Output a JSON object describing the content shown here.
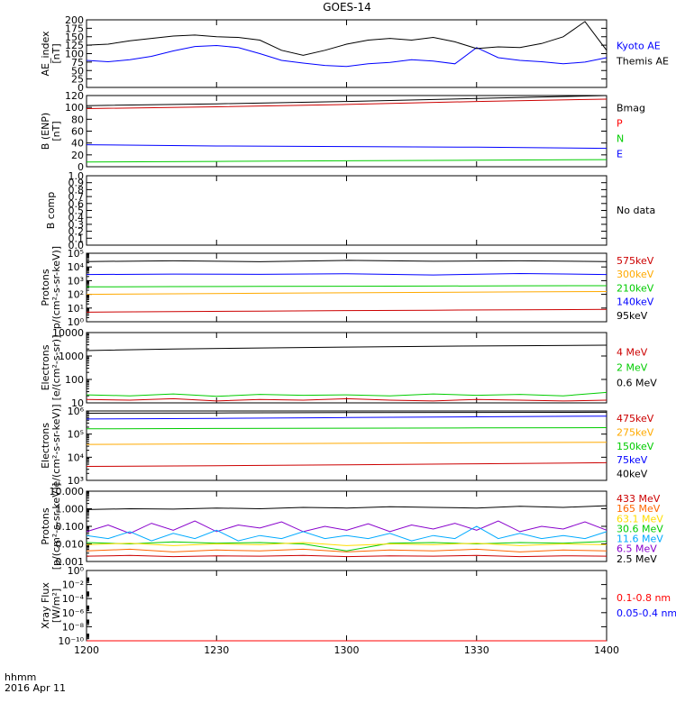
{
  "title": "GOES-14",
  "footer": {
    "line1": "hhmm",
    "line2": "2016 Apr 11"
  },
  "chart_data": [
    {
      "type": "line",
      "id": "ae",
      "ylabel": [
        "AE_index",
        "[nT]"
      ],
      "ylim": [
        0,
        200
      ],
      "yscale": "linear",
      "yticks": [
        "0",
        "25",
        "50",
        "75",
        "100",
        "125",
        "150",
        "175",
        "200"
      ],
      "legend": [
        {
          "text": "Kyoto AE",
          "color": "#0000ff"
        },
        {
          "text": "Themis AE",
          "color": "#000000"
        }
      ],
      "series": [
        {
          "name": "Kyoto AE",
          "color": "#0000ff",
          "x": [
            0,
            5,
            10,
            15,
            20,
            25,
            30,
            35,
            40,
            45,
            50,
            55,
            60,
            65,
            70,
            75,
            80,
            85,
            90,
            95,
            100,
            105,
            110,
            115,
            120
          ],
          "y": [
            80,
            76,
            82,
            92,
            108,
            121,
            124,
            118,
            100,
            80,
            72,
            65,
            62,
            70,
            74,
            82,
            78,
            70,
            118,
            88,
            80,
            76,
            70,
            75,
            88
          ]
        },
        {
          "name": "Themis AE",
          "color": "#000000",
          "x": [
            0,
            5,
            10,
            15,
            20,
            25,
            30,
            35,
            40,
            45,
            50,
            55,
            60,
            65,
            70,
            75,
            80,
            85,
            90,
            95,
            100,
            105,
            110,
            115,
            120
          ],
          "y": [
            125,
            128,
            138,
            145,
            152,
            155,
            150,
            148,
            140,
            110,
            95,
            110,
            128,
            140,
            145,
            140,
            148,
            135,
            115,
            120,
            118,
            130,
            150,
            195,
            110
          ]
        }
      ]
    },
    {
      "type": "line",
      "id": "bfield",
      "ylabel": [
        "B (ENP)",
        "[nT]"
      ],
      "ylim": [
        0,
        120
      ],
      "yscale": "linear",
      "yticks": [
        "0",
        "20",
        "40",
        "60",
        "80",
        "100",
        "120"
      ],
      "legend": [
        {
          "text": "Bmag",
          "color": "#000000"
        },
        {
          "text": "P",
          "color": "#ff0000"
        },
        {
          "text": "N",
          "color": "#00cc00"
        },
        {
          "text": "E",
          "color": "#0000ff"
        }
      ],
      "series": [
        {
          "name": "Bmag",
          "color": "#000000",
          "x": [
            0,
            30,
            60,
            90,
            120
          ],
          "y": [
            103,
            106,
            110,
            115,
            120
          ]
        },
        {
          "name": "P",
          "color": "#cc0000",
          "x": [
            0,
            30,
            60,
            90,
            120
          ],
          "y": [
            98,
            101,
            105,
            110,
            114
          ]
        },
        {
          "name": "N",
          "color": "#00cc00",
          "x": [
            0,
            30,
            60,
            90,
            120
          ],
          "y": [
            8,
            9,
            10,
            11,
            12
          ]
        },
        {
          "name": "E",
          "color": "#0000ff",
          "x": [
            0,
            30,
            60,
            90,
            120
          ],
          "y": [
            37,
            35,
            34,
            33,
            31
          ]
        }
      ]
    },
    {
      "type": "line",
      "id": "bcomp",
      "ylabel": [
        "B comp"
      ],
      "ylim": [
        0,
        1
      ],
      "yscale": "linear",
      "yticks": [
        "0.0",
        "0.1",
        "0.2",
        "0.3",
        "0.4",
        "0.5",
        "0.6",
        "0.7",
        "0.8",
        "0.9",
        "1.0"
      ],
      "legend": [
        {
          "text": "No data",
          "color": "#000000"
        }
      ],
      "series": []
    },
    {
      "type": "line",
      "id": "protons",
      "ylabel": [
        "Protons",
        "p/(cm²-s-sr-keV)]"
      ],
      "ylim": [
        1,
        100000
      ],
      "yscale": "log",
      "yticks": [
        "10⁰",
        "10¹",
        "10²",
        "10³",
        "10⁴",
        "10⁵"
      ],
      "legend": [
        {
          "text": "575keV",
          "color": "#cc0000"
        },
        {
          "text": "300keV",
          "color": "#ffaa00"
        },
        {
          "text": "210keV",
          "color": "#00cc00"
        },
        {
          "text": "140keV",
          "color": "#0000ff"
        },
        {
          "text": "95keV",
          "color": "#000000"
        }
      ],
      "series": [
        {
          "name": "95keV",
          "color": "#000000",
          "x": [
            0,
            20,
            40,
            60,
            80,
            100,
            120
          ],
          "y": [
            25000,
            28000,
            24000,
            30000,
            26000,
            28000,
            25000
          ]
        },
        {
          "name": "140keV",
          "color": "#0000ff",
          "x": [
            0,
            20,
            40,
            60,
            80,
            100,
            120
          ],
          "y": [
            2800,
            3000,
            2900,
            3200,
            2600,
            3300,
            2800
          ]
        },
        {
          "name": "210keV",
          "color": "#00cc00",
          "x": [
            0,
            20,
            40,
            60,
            80,
            100,
            120
          ],
          "y": [
            350,
            370,
            380,
            390,
            400,
            420,
            430
          ]
        },
        {
          "name": "300keV",
          "color": "#ffaa00",
          "x": [
            0,
            20,
            40,
            60,
            80,
            100,
            120
          ],
          "y": [
            100,
            110,
            120,
            130,
            140,
            150,
            160
          ]
        },
        {
          "name": "575keV",
          "color": "#cc0000",
          "x": [
            0,
            20,
            40,
            60,
            80,
            100,
            120
          ],
          "y": [
            5,
            5.5,
            6,
            6.5,
            7,
            7.5,
            8
          ]
        }
      ]
    },
    {
      "type": "line",
      "id": "electrons1",
      "ylabel": [
        "Electrons",
        "[e/(cm²-s-sr)]"
      ],
      "ylim": [
        10,
        10000
      ],
      "yscale": "log",
      "yticks": [
        "10",
        "100",
        "1000",
        "10000"
      ],
      "legend": [
        {
          "text": "4 MeV",
          "color": "#cc0000"
        },
        {
          "text": "2 MeV",
          "color": "#00cc00"
        },
        {
          "text": "0.6 MeV",
          "color": "#000000"
        }
      ],
      "series": [
        {
          "name": "0.6 MeV",
          "color": "#000000",
          "x": [
            0,
            20,
            40,
            60,
            80,
            100,
            120
          ],
          "y": [
            1700,
            2000,
            2200,
            2400,
            2600,
            2750,
            2900
          ]
        },
        {
          "name": "2 MeV",
          "color": "#00cc00",
          "x": [
            0,
            10,
            20,
            30,
            40,
            50,
            60,
            70,
            80,
            90,
            100,
            110,
            120
          ],
          "y": [
            22,
            20,
            24,
            19,
            23,
            21,
            22,
            20,
            24,
            21,
            23,
            20,
            28
          ]
        },
        {
          "name": "4 MeV",
          "color": "#cc0000",
          "x": [
            0,
            10,
            20,
            30,
            40,
            50,
            60,
            70,
            80,
            90,
            100,
            110,
            120
          ],
          "y": [
            14,
            13,
            15,
            12,
            14,
            13,
            15,
            13,
            12,
            14,
            13,
            12,
            13
          ]
        }
      ]
    },
    {
      "type": "line",
      "id": "electrons2",
      "ylabel": [
        "Electrons",
        "e/(cm²-s-sr-keV)]"
      ],
      "ylim": [
        1000,
        1000000
      ],
      "yscale": "log",
      "yticks": [
        "10³",
        "10⁴",
        "10⁵",
        "10⁶"
      ],
      "legend": [
        {
          "text": "475keV",
          "color": "#cc0000"
        },
        {
          "text": "275keV",
          "color": "#ffaa00"
        },
        {
          "text": "150keV",
          "color": "#00cc00"
        },
        {
          "text": "75keV",
          "color": "#0000ff"
        },
        {
          "text": "40keV",
          "color": "#000000"
        }
      ],
      "series": [
        {
          "name": "40keV",
          "color": "#000000",
          "x": [
            0,
            30,
            60,
            90,
            120
          ],
          "y": [
            800000,
            820000,
            850000,
            870000,
            880000
          ]
        },
        {
          "name": "75keV",
          "color": "#0000ff",
          "x": [
            0,
            30,
            60,
            90,
            120
          ],
          "y": [
            450000,
            480000,
            520000,
            560000,
            600000
          ]
        },
        {
          "name": "150keV",
          "color": "#00cc00",
          "x": [
            0,
            30,
            60,
            90,
            120
          ],
          "y": [
            170000,
            175000,
            180000,
            185000,
            190000
          ]
        },
        {
          "name": "275keV",
          "color": "#ffaa00",
          "x": [
            0,
            30,
            60,
            90,
            120
          ],
          "y": [
            36000,
            38000,
            40000,
            42000,
            44000
          ]
        },
        {
          "name": "475keV",
          "color": "#cc0000",
          "x": [
            0,
            30,
            60,
            90,
            120
          ],
          "y": [
            4000,
            4300,
            4700,
            5200,
            5800
          ]
        }
      ]
    },
    {
      "type": "line",
      "id": "protons_hi",
      "ylabel": [
        "Protons",
        "[p/(cm²-s-sr-keV)]"
      ],
      "ylim": [
        0.001,
        10
      ],
      "yscale": "log",
      "yticks": [
        "0.001",
        "0.010",
        "0.100",
        "1.000",
        "10.000"
      ],
      "legend": [
        {
          "text": "433 MeV",
          "color": "#cc0000"
        },
        {
          "text": "165 MeV",
          "color": "#ff6600"
        },
        {
          "text": "63.1 MeV",
          "color": "#ffdd00"
        },
        {
          "text": "30.6 MeV",
          "color": "#00cc00"
        },
        {
          "text": "11.6 MeV",
          "color": "#00aaff"
        },
        {
          "text": "6.5 MeV",
          "color": "#8800cc"
        },
        {
          "text": "2.5 MeV",
          "color": "#000000"
        }
      ],
      "series": [
        {
          "name": "2.5 MeV",
          "color": "#000000",
          "x": [
            0,
            10,
            20,
            30,
            40,
            50,
            60,
            70,
            80,
            90,
            100,
            110,
            120
          ],
          "y": [
            0.9,
            1.0,
            0.95,
            1.1,
            1.0,
            1.2,
            1.1,
            1.3,
            1.2,
            1.1,
            1.4,
            1.2,
            1.5
          ]
        },
        {
          "name": "6.5 MeV",
          "color": "#8800cc",
          "x": [
            0,
            5,
            10,
            15,
            20,
            25,
            30,
            35,
            40,
            45,
            50,
            55,
            60,
            65,
            70,
            75,
            80,
            85,
            90,
            95,
            100,
            105,
            110,
            115,
            120
          ],
          "y": [
            0.05,
            0.12,
            0.04,
            0.15,
            0.06,
            0.2,
            0.05,
            0.12,
            0.08,
            0.18,
            0.05,
            0.1,
            0.06,
            0.14,
            0.05,
            0.12,
            0.07,
            0.15,
            0.06,
            0.2,
            0.05,
            0.1,
            0.07,
            0.18,
            0.06
          ]
        },
        {
          "name": "11.6 MeV",
          "color": "#00aaff",
          "x": [
            0,
            5,
            10,
            15,
            20,
            25,
            30,
            35,
            40,
            45,
            50,
            55,
            60,
            65,
            70,
            75,
            80,
            85,
            90,
            95,
            100,
            105,
            110,
            115,
            120
          ],
          "y": [
            0.03,
            0.02,
            0.05,
            0.015,
            0.04,
            0.02,
            0.06,
            0.015,
            0.03,
            0.02,
            0.05,
            0.02,
            0.03,
            0.02,
            0.04,
            0.015,
            0.03,
            0.02,
            0.1,
            0.02,
            0.04,
            0.02,
            0.03,
            0.02,
            0.05
          ]
        },
        {
          "name": "30.6 MeV",
          "color": "#00cc00",
          "x": [
            0,
            10,
            20,
            30,
            40,
            50,
            60,
            70,
            80,
            90,
            100,
            110,
            120
          ],
          "y": [
            0.012,
            0.01,
            0.013,
            0.011,
            0.012,
            0.01,
            0.004,
            0.011,
            0.012,
            0.01,
            0.012,
            0.011,
            0.014
          ]
        },
        {
          "name": "63.1 MeV",
          "color": "#ffdd00",
          "x": [
            0,
            10,
            20,
            30,
            40,
            50,
            60,
            70,
            80,
            90,
            100,
            110,
            120
          ],
          "y": [
            0.009,
            0.011,
            0.008,
            0.01,
            0.009,
            0.012,
            0.008,
            0.01,
            0.009,
            0.011,
            0.008,
            0.01,
            0.009
          ]
        },
        {
          "name": "165 MeV",
          "color": "#ff6600",
          "x": [
            0,
            10,
            20,
            30,
            40,
            50,
            60,
            70,
            80,
            90,
            100,
            110,
            120
          ],
          "y": [
            0.004,
            0.005,
            0.0035,
            0.0045,
            0.004,
            0.005,
            0.0035,
            0.0045,
            0.004,
            0.005,
            0.0035,
            0.0045,
            0.004
          ]
        },
        {
          "name": "433 MeV",
          "color": "#cc0000",
          "x": [
            0,
            10,
            20,
            30,
            40,
            50,
            60,
            70,
            80,
            90,
            100,
            110,
            120
          ],
          "y": [
            0.002,
            0.0022,
            0.0019,
            0.0021,
            0.002,
            0.0022,
            0.0019,
            0.0021,
            0.002,
            0.0022,
            0.0019,
            0.0021,
            0.002
          ]
        }
      ]
    },
    {
      "type": "line",
      "id": "xray",
      "ylabel": [
        "Xray Flux",
        "[W/m²]"
      ],
      "ylim": [
        1e-10,
        1
      ],
      "yscale": "log",
      "yticks": [
        "10⁻¹⁰",
        "10⁻⁸",
        "10⁻⁶",
        "10⁻⁴",
        "10⁻²",
        "10⁰"
      ],
      "legend": [
        {
          "text": "0.1-0.8 nm",
          "color": "#ff0000"
        },
        {
          "text": "0.05-0.4 nm",
          "color": "#0000ff"
        }
      ],
      "series": [
        {
          "name": "0.1-0.8 nm",
          "color": "#ff0000",
          "x": [
            0,
            120
          ],
          "y": [
            1e-10,
            1e-10
          ]
        }
      ]
    }
  ],
  "xaxis": {
    "ticks": [
      "1200",
      "1230",
      "1300",
      "1330",
      "1400"
    ],
    "values": [
      0,
      30,
      60,
      90,
      120
    ]
  }
}
